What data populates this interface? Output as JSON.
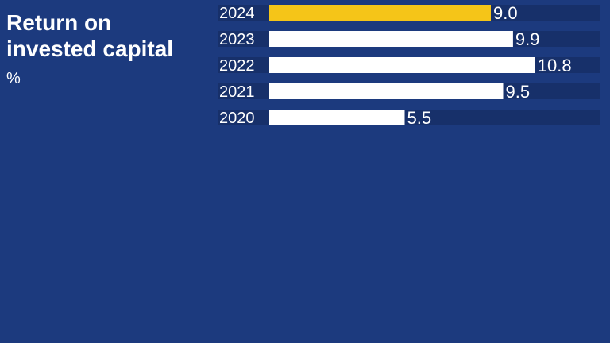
{
  "colors": {
    "background": "#1c3a7e",
    "track": "#17306a",
    "highlight": "#f5c518",
    "bar": "#ffffff",
    "text": "#ffffff"
  },
  "chart_data": {
    "type": "bar",
    "orientation": "horizontal",
    "title": "Return on invested capital",
    "unit": "%",
    "categories": [
      "2024",
      "2023",
      "2022",
      "2021",
      "2020"
    ],
    "values": [
      9.0,
      9.9,
      10.8,
      9.5,
      5.5
    ],
    "value_labels": [
      "9.0",
      "9.9",
      "10.8",
      "9.5",
      "5.5"
    ],
    "highlighted_category": "2024",
    "xlim": [
      0,
      14
    ]
  }
}
